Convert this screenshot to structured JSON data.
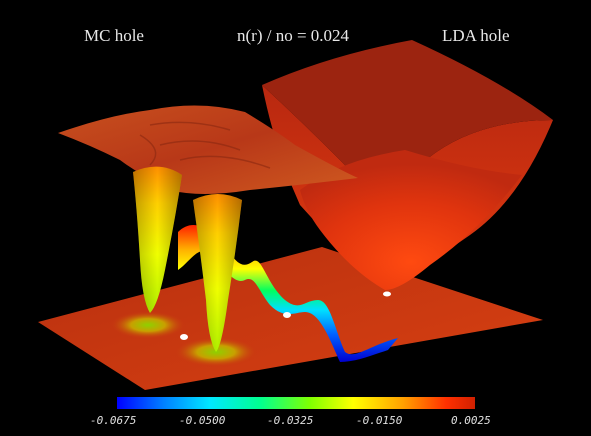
{
  "labels": {
    "left": "MC hole",
    "center": "n(r) / no = 0.024",
    "right": "LDA hole"
  },
  "colorbar": {
    "ticks": [
      "-0.0675",
      "-0.0500",
      "-0.0325",
      "-0.0150",
      "0.0025"
    ],
    "colors": [
      "#0000ff",
      "#00a0ff",
      "#00ffff",
      "#00ff80",
      "#80ff00",
      "#ffff00",
      "#ffa000",
      "#ff3000",
      "#cc2000"
    ]
  },
  "colors": {
    "background": "#000000",
    "surface": "#c83214"
  }
}
